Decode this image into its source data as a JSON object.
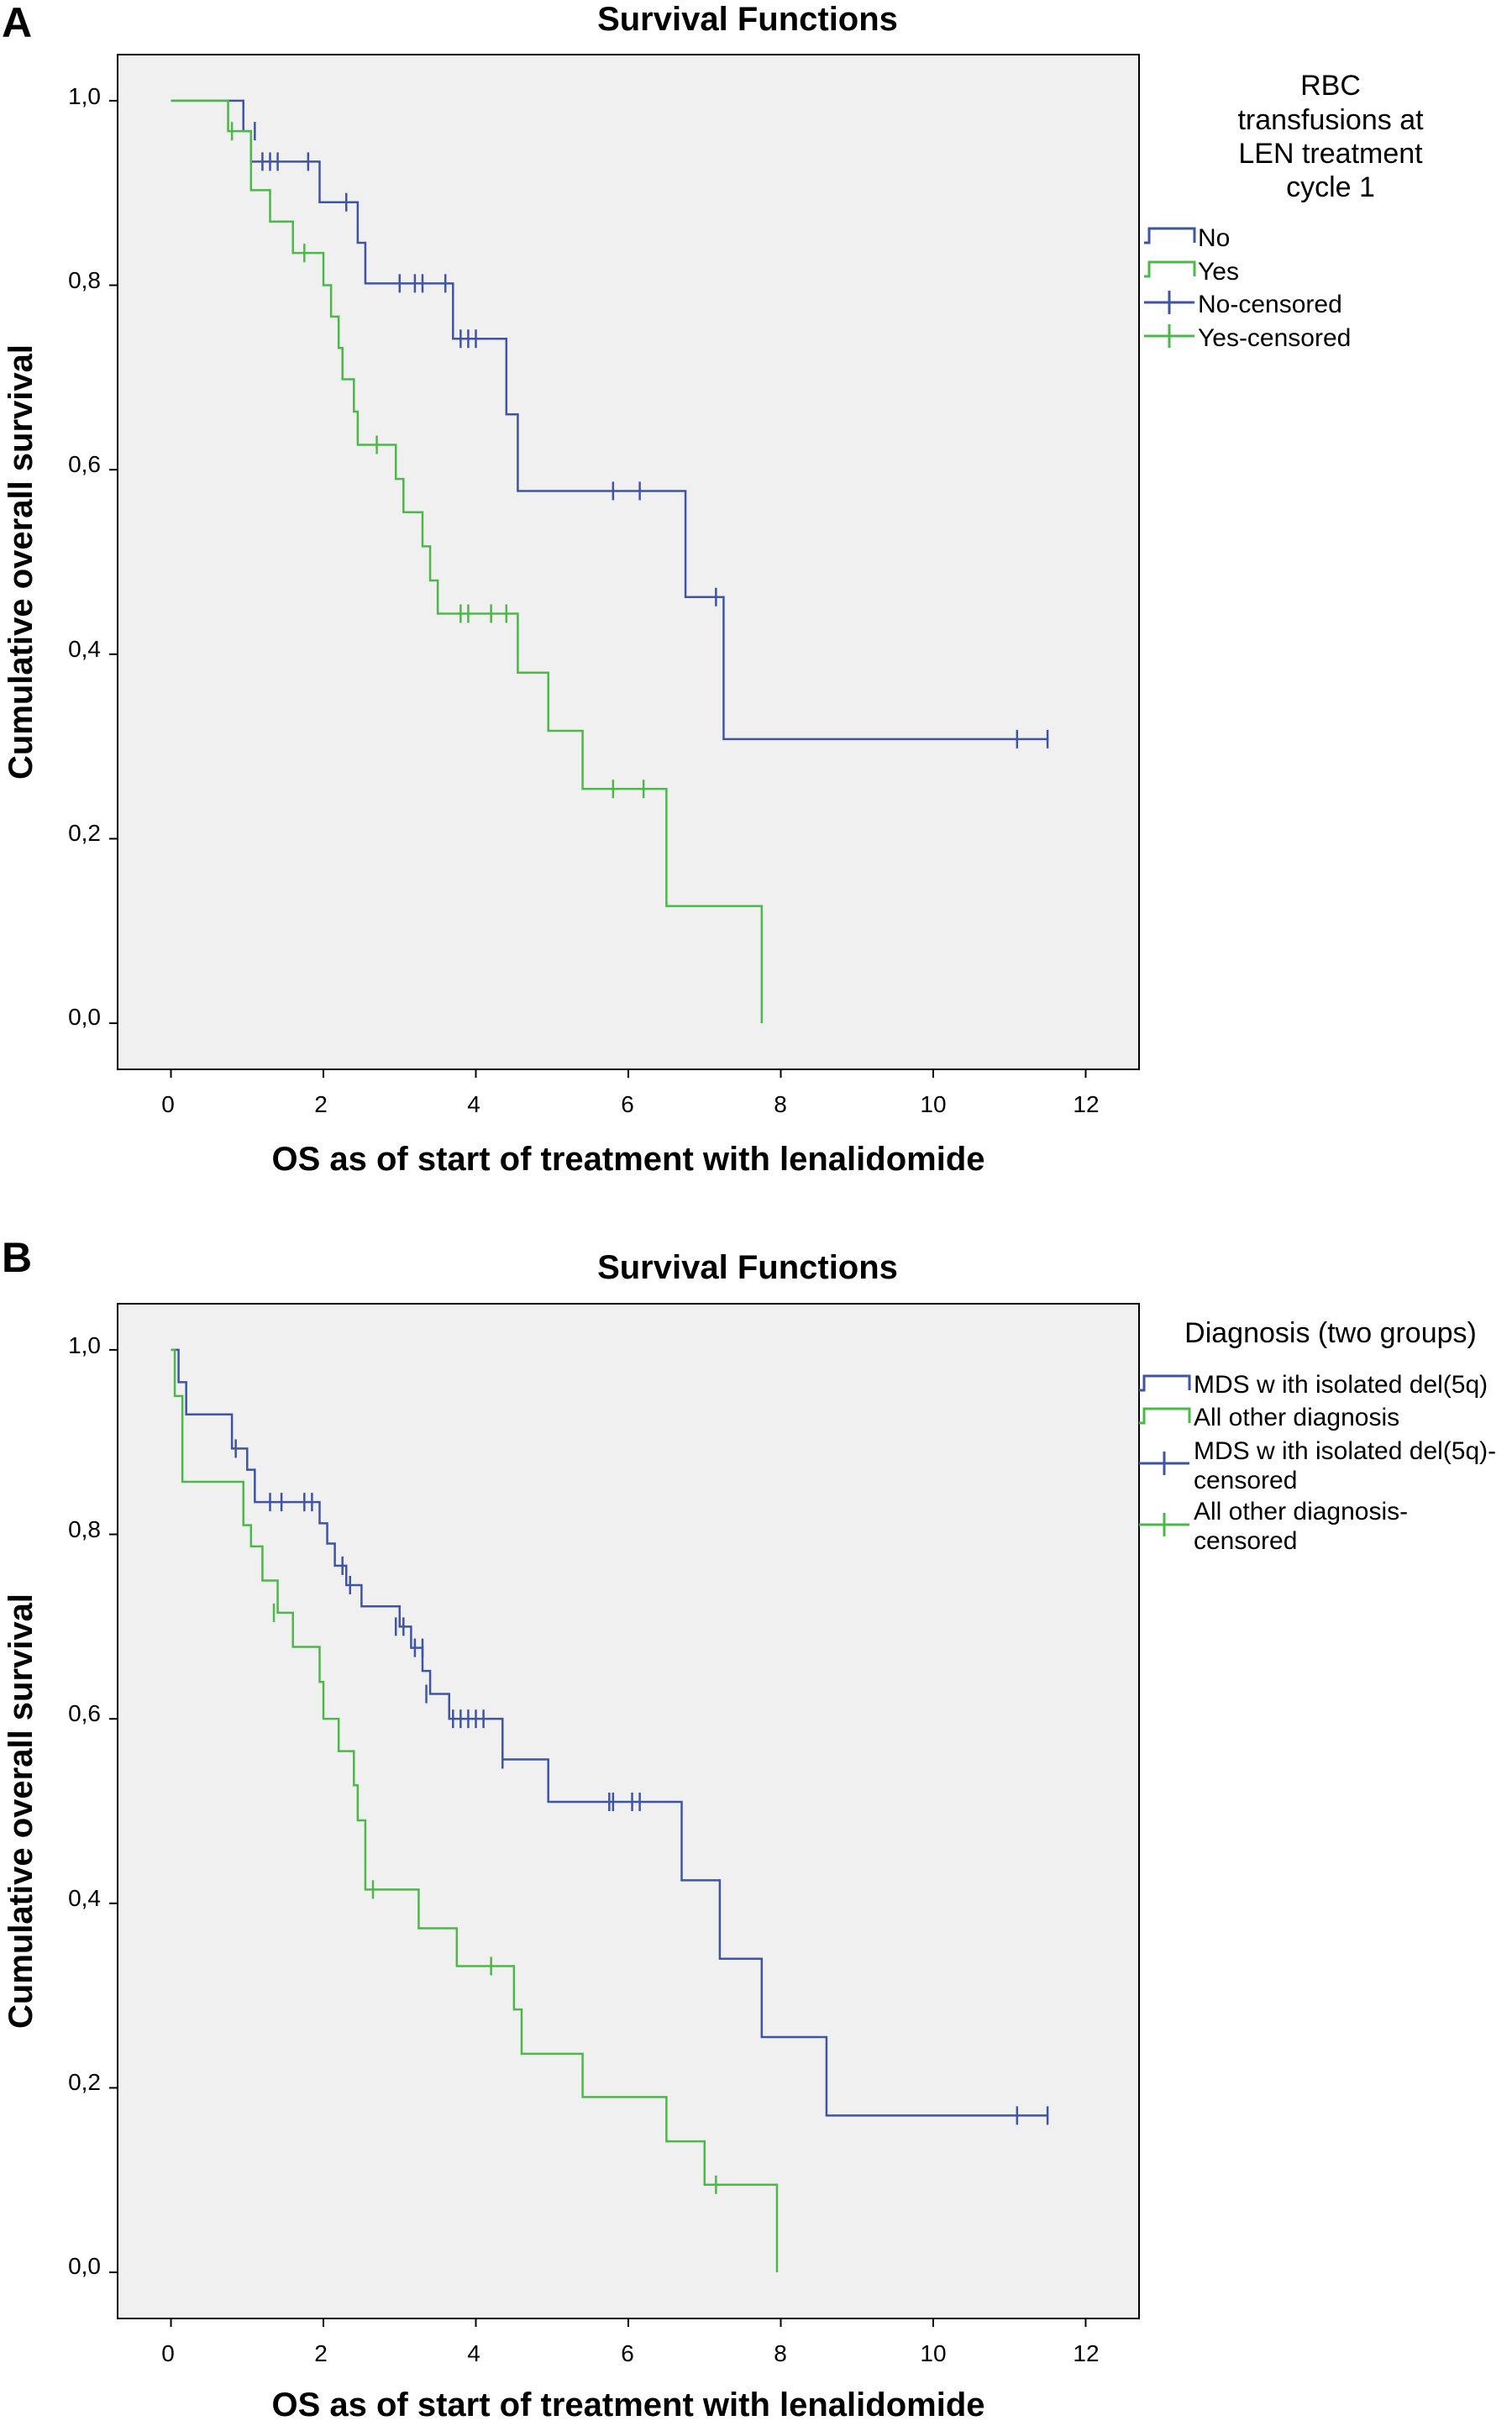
{
  "chart_data": [
    {
      "type": "line",
      "panel_label": "A",
      "title": "Survival Functions",
      "xlabel": "OS as of start of treatment with lenalidomide",
      "ylabel": "Cumulative overall survival",
      "xlim": [
        -0.7,
        12.7
      ],
      "ylim": [
        -0.05,
        1.05
      ],
      "x_ticks": [
        0,
        2,
        4,
        6,
        8,
        10,
        12
      ],
      "x_tick_labels": [
        "0",
        "2",
        "4",
        "6",
        "8",
        "10",
        "12"
      ],
      "y_ticks": [
        0.0,
        0.2,
        0.4,
        0.6,
        0.8,
        1.0
      ],
      "y_tick_labels": [
        "0,0",
        "0,2",
        "0,4",
        "0,6",
        "0,8",
        "1,0"
      ],
      "grid": false,
      "legend_position": "right",
      "legend_title": "RBC transfusions at LEN treatment cycle 1",
      "legend_entries": [
        {
          "label": "No",
          "kind": "step",
          "color": "#3f55a3"
        },
        {
          "label": "Yes",
          "kind": "step",
          "color": "#4cb848"
        },
        {
          "label": "No-censored",
          "kind": "tick",
          "color": "#3f55a3"
        },
        {
          "label": "Yes-censored",
          "kind": "tick",
          "color": "#4cb848"
        }
      ],
      "series": [
        {
          "name": "No",
          "color": "#3f55a3",
          "steps": [
            [
              0,
              1.0
            ],
            [
              0.95,
              0.967
            ],
            [
              1.05,
              0.934
            ],
            [
              1.95,
              0.89
            ],
            [
              2.45,
              0.846
            ],
            [
              2.55,
              0.802
            ],
            [
              3.7,
              0.742
            ],
            [
              4.4,
              0.66
            ],
            [
              4.55,
              0.577
            ],
            [
              6.75,
              0.462
            ],
            [
              7.25,
              0.308
            ]
          ],
          "end_x": 11.5,
          "censored": [
            [
              1.1,
              0.967
            ],
            [
              1.2,
              0.934
            ],
            [
              1.3,
              0.934
            ],
            [
              1.4,
              0.934
            ],
            [
              1.8,
              0.934
            ],
            [
              2.3,
              0.89
            ],
            [
              3.0,
              0.802
            ],
            [
              3.2,
              0.802
            ],
            [
              3.3,
              0.802
            ],
            [
              3.6,
              0.802
            ],
            [
              3.8,
              0.742
            ],
            [
              3.9,
              0.742
            ],
            [
              4.0,
              0.742
            ],
            [
              5.8,
              0.577
            ],
            [
              6.15,
              0.577
            ],
            [
              7.15,
              0.462
            ],
            [
              11.1,
              0.308
            ],
            [
              11.5,
              0.308
            ]
          ]
        },
        {
          "name": "Yes",
          "color": "#4cb848",
          "steps": [
            [
              0,
              1.0
            ],
            [
              0.75,
              0.967
            ],
            [
              1.05,
              0.903
            ],
            [
              1.3,
              0.869
            ],
            [
              1.6,
              0.835
            ],
            [
              2.0,
              0.8
            ],
            [
              2.1,
              0.766
            ],
            [
              2.2,
              0.732
            ],
            [
              2.25,
              0.698
            ],
            [
              2.4,
              0.663
            ],
            [
              2.45,
              0.627
            ],
            [
              2.95,
              0.59
            ],
            [
              3.05,
              0.554
            ],
            [
              3.3,
              0.517
            ],
            [
              3.4,
              0.48
            ],
            [
              3.5,
              0.444
            ],
            [
              4.55,
              0.38
            ],
            [
              4.95,
              0.317
            ],
            [
              5.4,
              0.254
            ],
            [
              6.5,
              0.127
            ],
            [
              7.75,
              0.0
            ]
          ],
          "end_x": 7.75,
          "censored": [
            [
              0.8,
              0.967
            ],
            [
              1.75,
              0.835
            ],
            [
              2.7,
              0.627
            ],
            [
              3.8,
              0.444
            ],
            [
              3.9,
              0.444
            ],
            [
              4.2,
              0.444
            ],
            [
              4.4,
              0.444
            ],
            [
              5.8,
              0.254
            ],
            [
              6.2,
              0.254
            ]
          ]
        }
      ]
    },
    {
      "type": "line",
      "panel_label": "B",
      "title": "Survival Functions",
      "xlabel": "OS as of start of treatment with lenalidomide",
      "ylabel": "Cumulative overall survival",
      "xlim": [
        -0.7,
        12.7
      ],
      "ylim": [
        -0.05,
        1.05
      ],
      "x_ticks": [
        0,
        2,
        4,
        6,
        8,
        10,
        12
      ],
      "x_tick_labels": [
        "0",
        "2",
        "4",
        "6",
        "8",
        "10",
        "12"
      ],
      "y_ticks": [
        0.0,
        0.2,
        0.4,
        0.6,
        0.8,
        1.0
      ],
      "y_tick_labels": [
        "0,0",
        "0,2",
        "0,4",
        "0,6",
        "0,8",
        "1,0"
      ],
      "grid": false,
      "legend_position": "right",
      "legend_title": "Diagnosis (two groups)",
      "legend_entries": [
        {
          "label": "MDS w ith isolated del(5q)",
          "kind": "step",
          "color": "#3f55a3"
        },
        {
          "label": "All other diagnosis",
          "kind": "step",
          "color": "#4cb848"
        },
        {
          "label": "MDS w ith isolated del(5q)-\ncensored",
          "kind": "tick",
          "color": "#3f55a3"
        },
        {
          "label": "All other diagnosis-\ncensored",
          "kind": "tick",
          "color": "#4cb848"
        }
      ],
      "series": [
        {
          "name": "MDS w ith isolated del(5q)",
          "color": "#3f55a3",
          "steps": [
            [
              0,
              1.0
            ],
            [
              0.1,
              0.965
            ],
            [
              0.2,
              0.93
            ],
            [
              0.8,
              0.893
            ],
            [
              1.0,
              0.87
            ],
            [
              1.1,
              0.835
            ],
            [
              1.95,
              0.812
            ],
            [
              2.05,
              0.79
            ],
            [
              2.15,
              0.766
            ],
            [
              2.3,
              0.745
            ],
            [
              2.5,
              0.722
            ],
            [
              3.0,
              0.7
            ],
            [
              3.15,
              0.677
            ],
            [
              3.3,
              0.652
            ],
            [
              3.4,
              0.627
            ],
            [
              3.65,
              0.6
            ],
            [
              4.35,
              0.556
            ],
            [
              4.95,
              0.51
            ],
            [
              6.7,
              0.425
            ],
            [
              7.2,
              0.34
            ],
            [
              7.75,
              0.255
            ],
            [
              8.6,
              0.17
            ]
          ],
          "end_x": 11.5,
          "censored": [
            [
              0.85,
              0.893
            ],
            [
              1.3,
              0.835
            ],
            [
              1.45,
              0.835
            ],
            [
              1.75,
              0.835
            ],
            [
              1.85,
              0.835
            ],
            [
              2.25,
              0.766
            ],
            [
              2.35,
              0.745
            ],
            [
              2.95,
              0.7
            ],
            [
              3.05,
              0.7
            ],
            [
              3.2,
              0.677
            ],
            [
              3.3,
              0.677
            ],
            [
              3.35,
              0.627
            ],
            [
              3.7,
              0.6
            ],
            [
              3.8,
              0.6
            ],
            [
              3.9,
              0.6
            ],
            [
              4.0,
              0.6
            ],
            [
              4.1,
              0.6
            ],
            [
              4.35,
              0.556
            ],
            [
              5.75,
              0.51
            ],
            [
              5.8,
              0.51
            ],
            [
              6.05,
              0.51
            ],
            [
              6.15,
              0.51
            ],
            [
              11.1,
              0.17
            ],
            [
              11.5,
              0.17
            ]
          ]
        },
        {
          "name": "All other diagnosis",
          "color": "#4cb848",
          "steps": [
            [
              0,
              1.0
            ],
            [
              0.05,
              0.95
            ],
            [
              0.15,
              0.857
            ],
            [
              0.95,
              0.81
            ],
            [
              1.05,
              0.787
            ],
            [
              1.2,
              0.75
            ],
            [
              1.4,
              0.715
            ],
            [
              1.6,
              0.678
            ],
            [
              1.95,
              0.64
            ],
            [
              2.0,
              0.6
            ],
            [
              2.2,
              0.565
            ],
            [
              2.4,
              0.528
            ],
            [
              2.45,
              0.49
            ],
            [
              2.55,
              0.415
            ],
            [
              3.25,
              0.373
            ],
            [
              3.75,
              0.332
            ],
            [
              4.5,
              0.285
            ],
            [
              4.6,
              0.237
            ],
            [
              5.4,
              0.19
            ],
            [
              6.5,
              0.142
            ],
            [
              7.0,
              0.095
            ],
            [
              7.95,
              0.0
            ]
          ],
          "end_x": 7.95,
          "censored": [
            [
              1.35,
              0.715
            ],
            [
              2.65,
              0.415
            ],
            [
              4.2,
              0.332
            ],
            [
              7.15,
              0.095
            ]
          ]
        }
      ]
    }
  ]
}
